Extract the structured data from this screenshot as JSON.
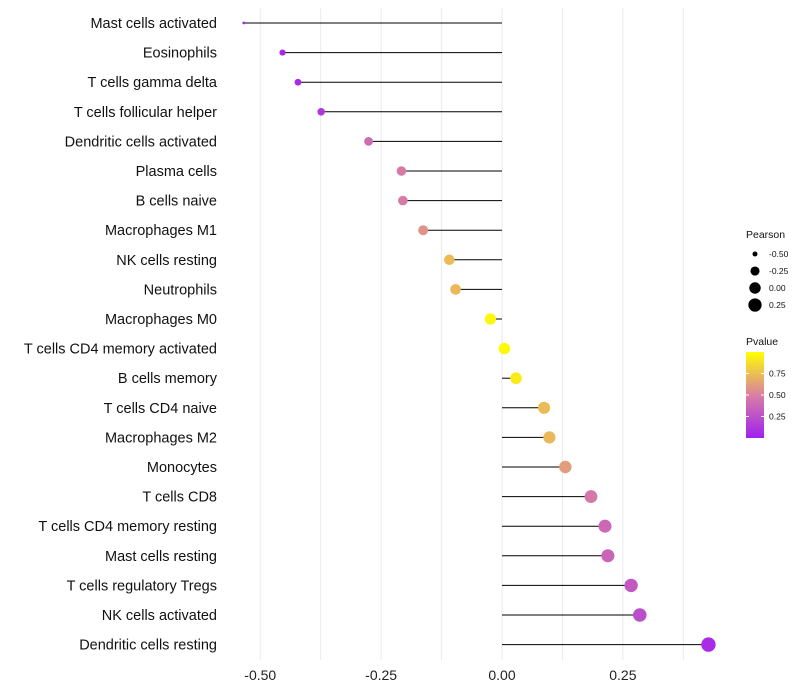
{
  "chart_data": {
    "type": "lollipop",
    "title": "",
    "xlabel": "",
    "ylabel": "",
    "xlim": [
      -0.56,
      0.46
    ],
    "x_ticks": [
      -0.5,
      -0.25,
      0.0,
      0.25
    ],
    "x_tick_labels": [
      "-0.50",
      "-0.25",
      "0.00",
      "0.25"
    ],
    "grid": true,
    "categories": [
      "Mast cells activated",
      "Eosinophils",
      "T cells gamma delta",
      "T cells follicular helper",
      "Dendritic cells activated",
      "Plasma cells",
      "B cells naive",
      "Macrophages M1",
      "NK cells resting",
      "Neutrophils",
      "Macrophages M0",
      "T cells CD4 memory activated",
      "B cells memory",
      "T cells CD4 naive",
      "Macrophages M2",
      "Monocytes",
      "T cells CD8",
      "T cells CD4 memory resting",
      "Mast cells resting",
      "T cells regulatory  Tregs ",
      "NK cells activated",
      "Dendritic cells resting"
    ],
    "pearson": [
      -0.534,
      -0.454,
      -0.422,
      -0.374,
      -0.276,
      -0.208,
      -0.205,
      -0.163,
      -0.109,
      -0.096,
      -0.024,
      0.005,
      0.029,
      0.087,
      0.098,
      0.131,
      0.184,
      0.213,
      0.219,
      0.267,
      0.285,
      0.427
    ],
    "pvalue": [
      0.02,
      0.05,
      0.05,
      0.12,
      0.4,
      0.48,
      0.48,
      0.58,
      0.74,
      0.72,
      0.97,
      0.98,
      0.92,
      0.74,
      0.72,
      0.62,
      0.46,
      0.38,
      0.36,
      0.3,
      0.24,
      0.06
    ],
    "legend": {
      "position": "right",
      "size_title": "Pearson",
      "size_breaks": [
        -0.5,
        -0.25,
        0.0,
        0.25
      ],
      "size_labels": [
        "-0.50",
        "-0.25",
        "0.00",
        "0.25"
      ],
      "color_title": "Pvalue",
      "color_breaks": [
        0.75,
        0.5,
        0.25
      ],
      "color_labels": [
        "0.75",
        "0.50",
        "0.25"
      ],
      "color_low": "#a020f0",
      "color_mid": "#d97fa3",
      "color_high": "#ffff00"
    },
    "colors": {
      "stem": "#000000",
      "grid": "#ebebeb",
      "background": "#ffffff"
    }
  }
}
